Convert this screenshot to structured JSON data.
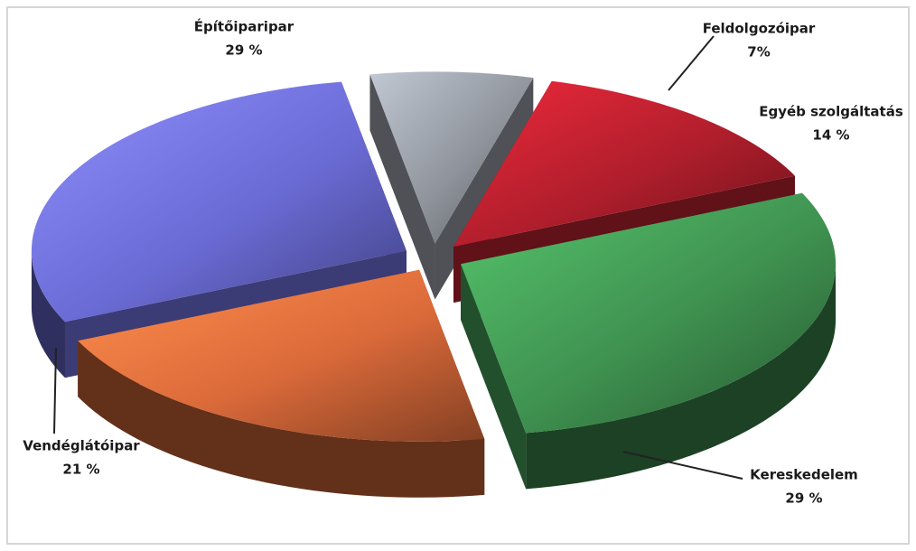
{
  "chart_data": {
    "type": "pie",
    "categories": [
      "Feldolgozóipar",
      "Egyéb szolgáltatás",
      "Kereskedelem",
      "Vendéglátóipar",
      "Építőiparipar"
    ],
    "values": [
      7,
      14,
      29,
      21,
      29
    ],
    "value_labels": [
      "7%",
      "14 %",
      "29 %",
      "21 %",
      "29 %"
    ],
    "colors": [
      "#8f949c",
      "#b01e2c",
      "#3f9150",
      "#db6a3a",
      "#6b6bd6"
    ]
  }
}
